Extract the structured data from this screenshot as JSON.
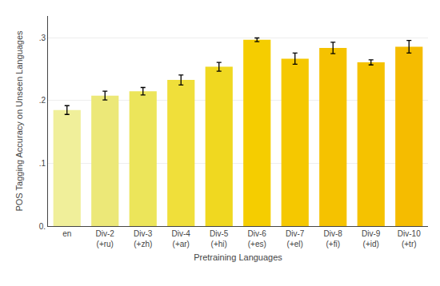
{
  "chart_data": {
    "type": "bar",
    "categories": [
      "en",
      "Div-2\n(+ru)",
      "Div-3\n(+zh)",
      "Div-4\n(+ar)",
      "Div-5\n(+hi)",
      "Div-6\n(+es)",
      "Div-7\n(+el)",
      "Div-8\n(+fi)",
      "Div-9\n(+id)",
      "Div-10\n(+tr)"
    ],
    "values": [
      0.185,
      0.208,
      0.215,
      0.233,
      0.254,
      0.297,
      0.267,
      0.284,
      0.261,
      0.286
    ],
    "errors": [
      0.007,
      0.007,
      0.006,
      0.008,
      0.007,
      0.003,
      0.009,
      0.009,
      0.004,
      0.01
    ],
    "colors": [
      "#f0ef9a",
      "#ece878",
      "#ece55a",
      "#f0df3a",
      "#f0d820",
      "#f5cd00",
      "#f5c800",
      "#f5c200",
      "#f5c200",
      "#f5bc00"
    ],
    "xlabel": "Pretraining Languages",
    "ylabel": "POS Tagging Accuracy on Unseen Languages",
    "ylim": [
      0.0,
      0.335
    ],
    "yticks": [
      {
        "value": 0.0,
        "label": "0."
      },
      {
        "value": 0.1,
        "label": ".1"
      },
      {
        "value": 0.2,
        "label": ".2"
      },
      {
        "value": 0.3,
        "label": ".3"
      }
    ],
    "grid": true
  }
}
